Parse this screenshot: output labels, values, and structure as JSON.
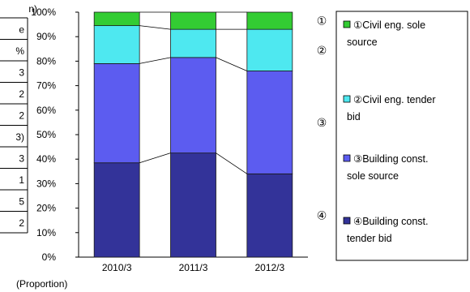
{
  "table_fragment": {
    "header_unit": "n)",
    "cells": [
      "e",
      "%",
      "3",
      "2",
      "2",
      "3)",
      "3",
      "1",
      "5",
      "2"
    ]
  },
  "colors": {
    "civil_sole": "#33cc33",
    "civil_tender": "#4ee8f0",
    "building_sole": "#5c5cf0",
    "building_tender": "#333399",
    "axis": "#000000"
  },
  "chart_data": {
    "type": "bar",
    "stacked": true,
    "categories": [
      "2010/3",
      "2011/3",
      "2012/3"
    ],
    "series": [
      {
        "name": "④Building const. tender bid",
        "values": [
          38.5,
          42.5,
          34.0
        ],
        "color": "#333399"
      },
      {
        "name": "③Building const. sole source",
        "values": [
          40.5,
          39.0,
          42.0
        ],
        "color": "#5c5cf0"
      },
      {
        "name": "②Civil eng. tender bid",
        "values": [
          15.5,
          11.5,
          17.0
        ],
        "color": "#4ee8f0"
      },
      {
        "name": "①Civil eng. sole source",
        "values": [
          5.5,
          7.0,
          7.0
        ],
        "color": "#33cc33"
      }
    ],
    "ylim": [
      0,
      100
    ],
    "yticks": [
      "0%",
      "10%",
      "20%",
      "30%",
      "40%",
      "50%",
      "60%",
      "70%",
      "80%",
      "90%",
      "100%"
    ],
    "ylabel": "(Proportion)",
    "segment_markers": [
      "①",
      "②",
      "③",
      "④"
    ],
    "legend": {
      "placement": "right",
      "entries": [
        "①Civil eng. sole source",
        "②Civil eng. tender bid",
        "③Building const. sole source",
        "④Building const. tender bid"
      ]
    },
    "connector_lines": true,
    "grid": false
  }
}
